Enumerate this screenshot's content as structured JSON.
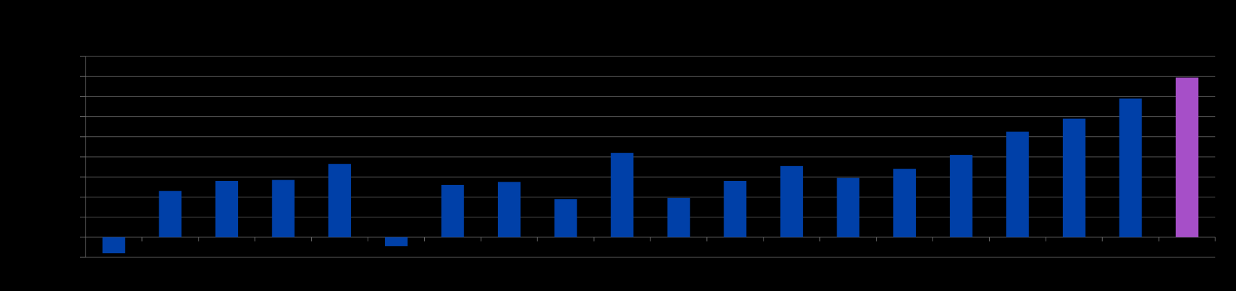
{
  "chart_data": {
    "type": "bar",
    "title": "",
    "xlabel": "",
    "ylabel": "",
    "categories": [
      "",
      "",
      "",
      "",
      "",
      "",
      "",
      "",
      "",
      "",
      "",
      "",
      "",
      "",
      "",
      "",
      "",
      "",
      "",
      ""
    ],
    "values": [
      -0.8,
      2.3,
      2.8,
      2.85,
      3.65,
      -0.45,
      2.6,
      2.75,
      1.9,
      4.2,
      1.95,
      2.8,
      3.55,
      2.95,
      3.4,
      4.1,
      5.25,
      5.9,
      6.9,
      7.95
    ],
    "bar_colors": [
      "#0040a8",
      "#0040a8",
      "#0040a8",
      "#0040a8",
      "#0040a8",
      "#0040a8",
      "#0040a8",
      "#0040a8",
      "#0040a8",
      "#0040a8",
      "#0040a8",
      "#0040a8",
      "#0040a8",
      "#0040a8",
      "#0040a8",
      "#0040a8",
      "#0040a8",
      "#0040a8",
      "#0040a8",
      "#a64fc8"
    ],
    "ylim": [
      -1,
      9
    ],
    "grid": true,
    "gridline_color": "#5a5a5a",
    "axis_color": "#6e6e6e",
    "background_color": "#000000"
  }
}
